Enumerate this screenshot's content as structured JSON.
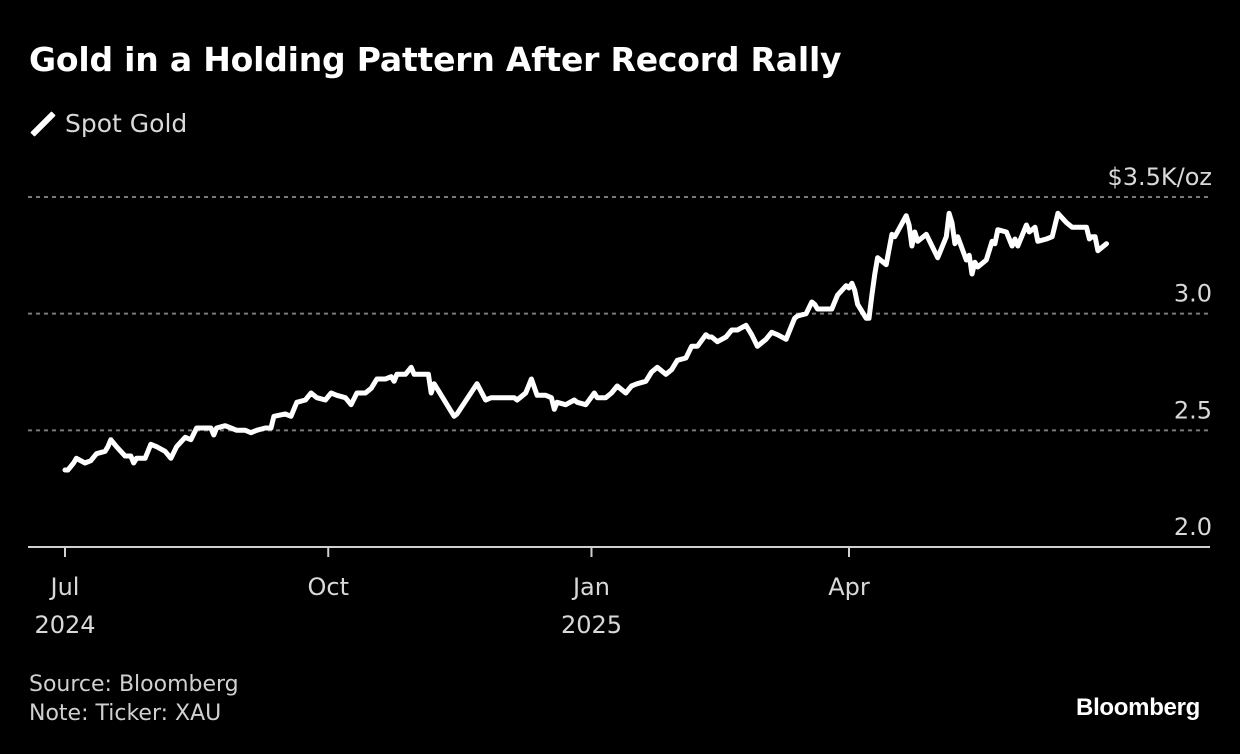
{
  "title": "Gold in a Holding Pattern After Record Rally",
  "legend": [
    {
      "label": "Spot Gold",
      "icon": "line-swatch-icon",
      "color": "#ffffff"
    }
  ],
  "footer": {
    "source": "Source: Bloomberg",
    "note": "Note: Ticker: XAU"
  },
  "brand": "Bloomberg",
  "colors": {
    "background": "#000000",
    "line": "#ffffff",
    "grid": "#7a7a7a",
    "axis": "#d0d0d0",
    "text": "#d9d9d9"
  },
  "chart_data": {
    "type": "line",
    "title": "Gold in a Holding Pattern After Record Rally",
    "xlabel": "",
    "ylabel": "$K/oz",
    "y_unit_label": "$3.5K/oz",
    "ylim": [
      2.0,
      3.5
    ],
    "yticks": [
      {
        "value": 3.5,
        "label": "$3.5K/oz"
      },
      {
        "value": 3.0,
        "label": "3.0"
      },
      {
        "value": 2.5,
        "label": "2.5"
      },
      {
        "value": 2.0,
        "label": "2.0"
      }
    ],
    "xlim": [
      "2024-06-19",
      "2025-08-31"
    ],
    "xticks": [
      {
        "date": "2024-07-01",
        "label": "Jul",
        "sublabel": "2024"
      },
      {
        "date": "2024-10-01",
        "label": "Oct",
        "sublabel": ""
      },
      {
        "date": "2025-01-01",
        "label": "Jan",
        "sublabel": "2025"
      },
      {
        "date": "2025-04-01",
        "label": "Apr",
        "sublabel": ""
      }
    ],
    "grid": true,
    "legend_position": "top-left",
    "series": [
      {
        "name": "Spot Gold",
        "points": [
          [
            "2024-07-01",
            2.33
          ],
          [
            "2024-07-02",
            2.33
          ],
          [
            "2024-07-04",
            2.36
          ],
          [
            "2024-07-05",
            2.38
          ],
          [
            "2024-07-08",
            2.36
          ],
          [
            "2024-07-10",
            2.37
          ],
          [
            "2024-07-12",
            2.4
          ],
          [
            "2024-07-15",
            2.41
          ],
          [
            "2024-07-16",
            2.43
          ],
          [
            "2024-07-17",
            2.46
          ],
          [
            "2024-07-19",
            2.43
          ],
          [
            "2024-07-22",
            2.39
          ],
          [
            "2024-07-24",
            2.39
          ],
          [
            "2024-07-25",
            2.36
          ],
          [
            "2024-07-26",
            2.38
          ],
          [
            "2024-07-29",
            2.38
          ],
          [
            "2024-07-31",
            2.44
          ],
          [
            "2024-08-02",
            2.43
          ],
          [
            "2024-08-05",
            2.41
          ],
          [
            "2024-08-07",
            2.38
          ],
          [
            "2024-08-09",
            2.43
          ],
          [
            "2024-08-12",
            2.47
          ],
          [
            "2024-08-14",
            2.46
          ],
          [
            "2024-08-16",
            2.51
          ],
          [
            "2024-08-19",
            2.51
          ],
          [
            "2024-08-21",
            2.51
          ],
          [
            "2024-08-22",
            2.48
          ],
          [
            "2024-08-23",
            2.51
          ],
          [
            "2024-08-26",
            2.52
          ],
          [
            "2024-08-28",
            2.51
          ],
          [
            "2024-08-30",
            2.5
          ],
          [
            "2024-09-02",
            2.5
          ],
          [
            "2024-09-04",
            2.49
          ],
          [
            "2024-09-06",
            2.5
          ],
          [
            "2024-09-09",
            2.51
          ],
          [
            "2024-09-11",
            2.51
          ],
          [
            "2024-09-12",
            2.56
          ],
          [
            "2024-09-16",
            2.57
          ],
          [
            "2024-09-18",
            2.56
          ],
          [
            "2024-09-20",
            2.62
          ],
          [
            "2024-09-23",
            2.63
          ],
          [
            "2024-09-25",
            2.66
          ],
          [
            "2024-09-27",
            2.64
          ],
          [
            "2024-09-30",
            2.63
          ],
          [
            "2024-10-02",
            2.66
          ],
          [
            "2024-10-04",
            2.65
          ],
          [
            "2024-10-07",
            2.64
          ],
          [
            "2024-10-09",
            2.61
          ],
          [
            "2024-10-11",
            2.66
          ],
          [
            "2024-10-14",
            2.66
          ],
          [
            "2024-10-16",
            2.68
          ],
          [
            "2024-10-18",
            2.72
          ],
          [
            "2024-10-21",
            2.72
          ],
          [
            "2024-10-23",
            2.73
          ],
          [
            "2024-10-24",
            2.71
          ],
          [
            "2024-10-25",
            2.74
          ],
          [
            "2024-10-28",
            2.74
          ],
          [
            "2024-10-30",
            2.77
          ],
          [
            "2024-10-31",
            2.74
          ],
          [
            "2024-11-01",
            2.74
          ],
          [
            "2024-11-04",
            2.74
          ],
          [
            "2024-11-05",
            2.74
          ],
          [
            "2024-11-06",
            2.66
          ],
          [
            "2024-11-07",
            2.7
          ],
          [
            "2024-11-08",
            2.68
          ],
          [
            "2024-11-14",
            2.56
          ],
          [
            "2024-11-15",
            2.57
          ],
          [
            "2024-11-22",
            2.7
          ],
          [
            "2024-11-25",
            2.63
          ],
          [
            "2024-11-27",
            2.64
          ],
          [
            "2024-12-02",
            2.64
          ],
          [
            "2024-12-05",
            2.64
          ],
          [
            "2024-12-06",
            2.63
          ],
          [
            "2024-12-09",
            2.66
          ],
          [
            "2024-12-11",
            2.72
          ],
          [
            "2024-12-13",
            2.65
          ],
          [
            "2024-12-16",
            2.65
          ],
          [
            "2024-12-18",
            2.64
          ],
          [
            "2024-12-19",
            2.59
          ],
          [
            "2024-12-20",
            2.62
          ],
          [
            "2024-12-23",
            2.61
          ],
          [
            "2024-12-26",
            2.63
          ],
          [
            "2024-12-27",
            2.62
          ],
          [
            "2024-12-30",
            2.61
          ],
          [
            "2025-01-02",
            2.66
          ],
          [
            "2025-01-03",
            2.64
          ],
          [
            "2025-01-06",
            2.64
          ],
          [
            "2025-01-08",
            2.66
          ],
          [
            "2025-01-10",
            2.69
          ],
          [
            "2025-01-13",
            2.66
          ],
          [
            "2025-01-15",
            2.69
          ],
          [
            "2025-01-17",
            2.7
          ],
          [
            "2025-01-20",
            2.71
          ],
          [
            "2025-01-22",
            2.75
          ],
          [
            "2025-01-24",
            2.77
          ],
          [
            "2025-01-27",
            2.74
          ],
          [
            "2025-01-29",
            2.76
          ],
          [
            "2025-01-31",
            2.8
          ],
          [
            "2025-02-03",
            2.81
          ],
          [
            "2025-02-05",
            2.86
          ],
          [
            "2025-02-07",
            2.86
          ],
          [
            "2025-02-10",
            2.91
          ],
          [
            "2025-02-11",
            2.9
          ],
          [
            "2025-02-12",
            2.9
          ],
          [
            "2025-02-14",
            2.88
          ],
          [
            "2025-02-17",
            2.9
          ],
          [
            "2025-02-19",
            2.93
          ],
          [
            "2025-02-21",
            2.93
          ],
          [
            "2025-02-24",
            2.95
          ],
          [
            "2025-02-26",
            2.91
          ],
          [
            "2025-02-28",
            2.86
          ],
          [
            "2025-03-03",
            2.89
          ],
          [
            "2025-03-05",
            2.92
          ],
          [
            "2025-03-07",
            2.91
          ],
          [
            "2025-03-10",
            2.89
          ],
          [
            "2025-03-11",
            2.92
          ],
          [
            "2025-03-13",
            2.98
          ],
          [
            "2025-03-14",
            2.99
          ],
          [
            "2025-03-17",
            3.0
          ],
          [
            "2025-03-19",
            3.05
          ],
          [
            "2025-03-20",
            3.04
          ],
          [
            "2025-03-21",
            3.02
          ],
          [
            "2025-03-24",
            3.02
          ],
          [
            "2025-03-26",
            3.02
          ],
          [
            "2025-03-28",
            3.08
          ],
          [
            "2025-03-31",
            3.12
          ],
          [
            "2025-04-01",
            3.11
          ],
          [
            "2025-04-02",
            3.13
          ],
          [
            "2025-04-03",
            3.1
          ],
          [
            "2025-04-04",
            3.04
          ],
          [
            "2025-04-07",
            2.98
          ],
          [
            "2025-04-08",
            2.98
          ],
          [
            "2025-04-09",
            3.08
          ],
          [
            "2025-04-10",
            3.17
          ],
          [
            "2025-04-11",
            3.24
          ],
          [
            "2025-04-14",
            3.21
          ],
          [
            "2025-04-16",
            3.34
          ],
          [
            "2025-04-17",
            3.33
          ],
          [
            "2025-04-21",
            3.42
          ],
          [
            "2025-04-22",
            3.38
          ],
          [
            "2025-04-23",
            3.29
          ],
          [
            "2025-04-24",
            3.35
          ],
          [
            "2025-04-25",
            3.31
          ],
          [
            "2025-04-28",
            3.34
          ],
          [
            "2025-04-30",
            3.29
          ],
          [
            "2025-05-02",
            3.24
          ],
          [
            "2025-05-05",
            3.33
          ],
          [
            "2025-05-06",
            3.43
          ],
          [
            "2025-05-07",
            3.39
          ],
          [
            "2025-05-08",
            3.3
          ],
          [
            "2025-05-09",
            3.33
          ],
          [
            "2025-05-12",
            3.23
          ],
          [
            "2025-05-13",
            3.25
          ],
          [
            "2025-05-14",
            3.17
          ],
          [
            "2025-05-15",
            3.22
          ],
          [
            "2025-05-16",
            3.2
          ],
          [
            "2025-05-19",
            3.23
          ],
          [
            "2025-05-21",
            3.31
          ],
          [
            "2025-05-22",
            3.3
          ],
          [
            "2025-05-23",
            3.36
          ],
          [
            "2025-05-26",
            3.35
          ],
          [
            "2025-05-28",
            3.29
          ],
          [
            "2025-05-29",
            3.32
          ],
          [
            "2025-05-30",
            3.29
          ],
          [
            "2025-06-02",
            3.38
          ],
          [
            "2025-06-03",
            3.35
          ],
          [
            "2025-06-05",
            3.37
          ],
          [
            "2025-06-06",
            3.31
          ],
          [
            "2025-06-09",
            3.32
          ],
          [
            "2025-06-11",
            3.33
          ],
          [
            "2025-06-13",
            3.43
          ],
          [
            "2025-06-16",
            3.39
          ],
          [
            "2025-06-18",
            3.37
          ],
          [
            "2025-06-20",
            3.37
          ],
          [
            "2025-06-23",
            3.37
          ],
          [
            "2025-06-24",
            3.32
          ],
          [
            "2025-06-25",
            3.33
          ],
          [
            "2025-06-26",
            3.33
          ],
          [
            "2025-06-27",
            3.27
          ],
          [
            "2025-06-30",
            3.3
          ]
        ]
      }
    ]
  }
}
